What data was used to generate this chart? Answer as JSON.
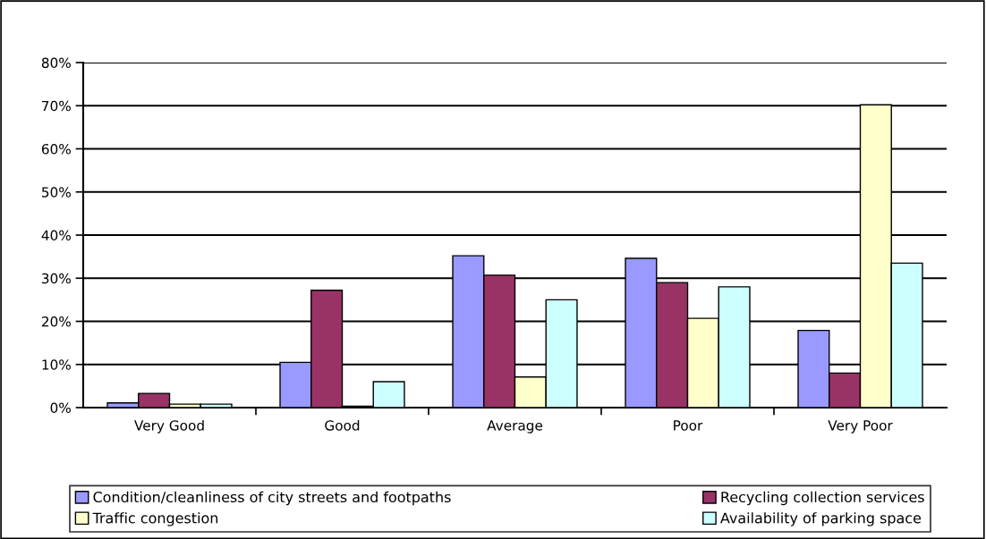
{
  "chart_data": {
    "type": "bar",
    "categories": [
      "Very Good",
      "Good",
      "Average",
      "Poor",
      "Very Poor"
    ],
    "series": [
      {
        "name": "Condition/cleanliness of city streets and footpaths",
        "color": "#9999ff",
        "values": [
          1.1,
          10.5,
          35.2,
          34.6,
          17.9
        ]
      },
      {
        "name": "Recycling collection services",
        "color": "#993366",
        "values": [
          3.3,
          27.2,
          30.7,
          29.0,
          8.0
        ]
      },
      {
        "name": "Traffic congestion",
        "color": "#ffffcc",
        "values": [
          0.8,
          0.3,
          7.1,
          20.7,
          70.2
        ]
      },
      {
        "name": "Availability of parking space",
        "color": "#ccffff",
        "values": [
          0.8,
          6.0,
          25.0,
          28.0,
          33.5
        ]
      }
    ],
    "ylim": [
      0,
      80
    ],
    "yticks": [
      {
        "value": 0,
        "label": "0%"
      },
      {
        "value": 10,
        "label": "10%"
      },
      {
        "value": 20,
        "label": "20%"
      },
      {
        "value": 30,
        "label": "30%"
      },
      {
        "value": 40,
        "label": "40%"
      },
      {
        "value": 50,
        "label": "50%"
      },
      {
        "value": 60,
        "label": "60%"
      },
      {
        "value": 70,
        "label": "70%"
      },
      {
        "value": 80,
        "label": "80%"
      }
    ],
    "grid": "y",
    "legend": "bottom"
  }
}
